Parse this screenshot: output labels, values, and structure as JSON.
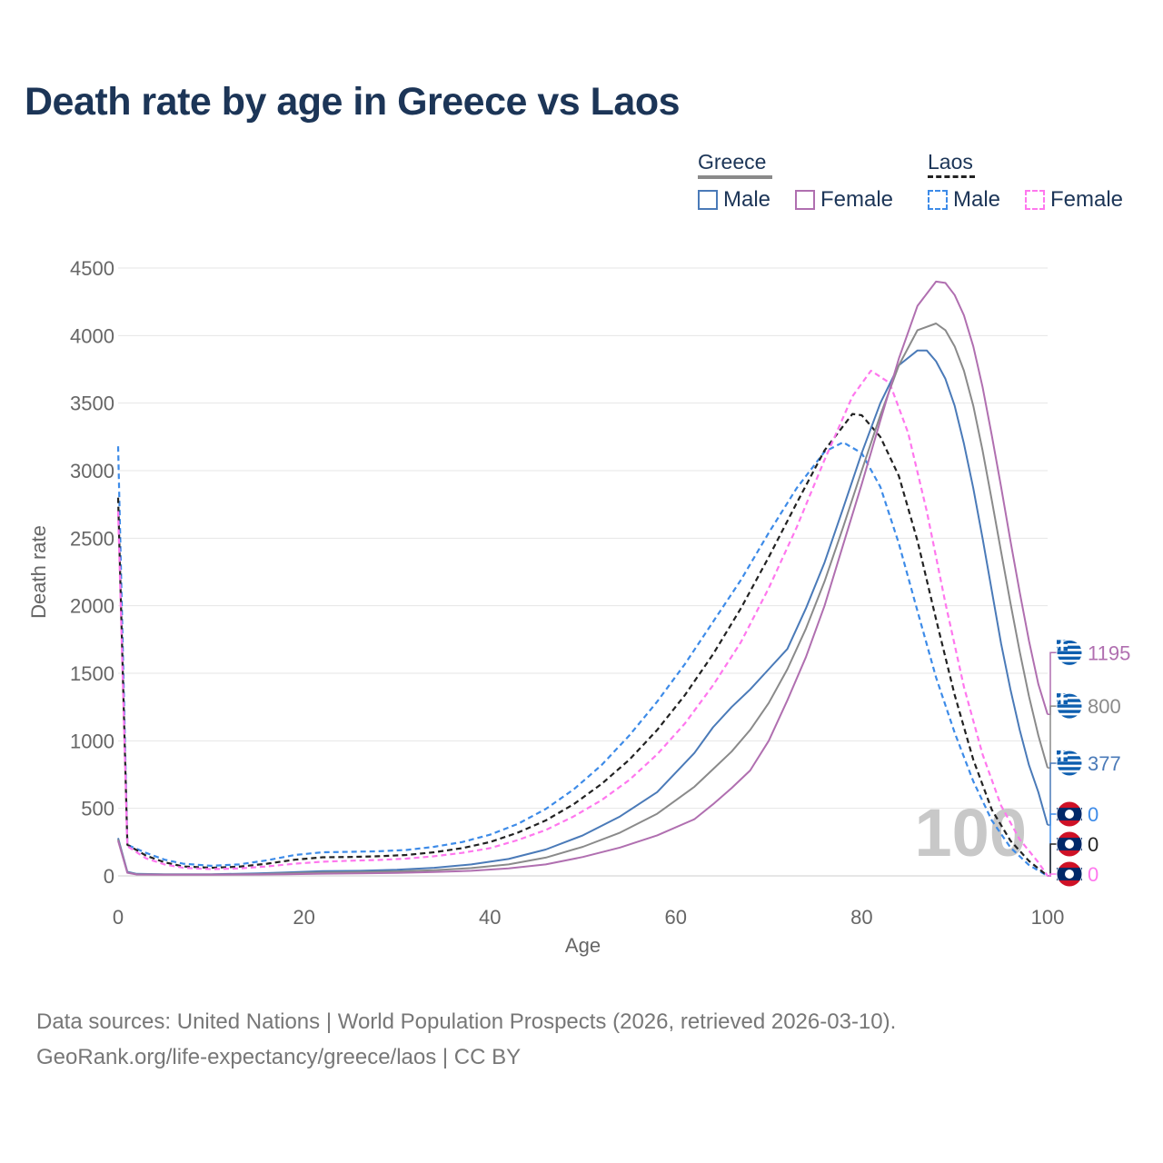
{
  "title": "Death rate by age in Greece vs Laos",
  "legend": {
    "groups": [
      {
        "label": "Greece",
        "line_color": "#8a8a8a",
        "dashed": false
      },
      {
        "label": "Laos",
        "line_color": "#222222",
        "dashed": true
      }
    ],
    "items": [
      {
        "label": "Male",
        "color": "#4a7ab8",
        "dashed": false
      },
      {
        "label": "Female",
        "color": "#b06fb0",
        "dashed": false
      },
      {
        "label": "Male",
        "color": "#3d8be8",
        "dashed": true
      },
      {
        "label": "Female",
        "color": "#ff77ee",
        "dashed": true
      }
    ]
  },
  "watermark": "100",
  "footer": {
    "line1": "Data sources: United Nations | World Population Prospects (2026, retrieved 2026-03-10).",
    "line2": "GeoRank.org/life-expectancy/greece/laos | CC BY"
  },
  "chart_data": {
    "type": "line",
    "title": "Death rate by age in Greece vs Laos",
    "xlabel": "Age",
    "ylabel": "Death rate",
    "xlim": [
      0,
      100
    ],
    "ylim": [
      0,
      4500
    ],
    "xticks": [
      0,
      20,
      40,
      60,
      80,
      100
    ],
    "yticks": [
      0,
      500,
      1000,
      1500,
      2000,
      2500,
      3000,
      3500,
      4000,
      4500
    ],
    "grid": true,
    "series": [
      {
        "name": "Laos Male",
        "country": "Laos",
        "sex": "Male",
        "color": "#3d8be8",
        "dashed": true,
        "end_label": "0",
        "points": [
          [
            0,
            3180
          ],
          [
            1,
            230
          ],
          [
            3,
            170
          ],
          [
            5,
            120
          ],
          [
            7,
            90
          ],
          [
            10,
            75
          ],
          [
            13,
            85
          ],
          [
            16,
            115
          ],
          [
            19,
            155
          ],
          [
            22,
            175
          ],
          [
            25,
            178
          ],
          [
            28,
            182
          ],
          [
            31,
            192
          ],
          [
            34,
            215
          ],
          [
            37,
            250
          ],
          [
            40,
            305
          ],
          [
            43,
            385
          ],
          [
            46,
            495
          ],
          [
            49,
            640
          ],
          [
            52,
            820
          ],
          [
            55,
            1040
          ],
          [
            58,
            1290
          ],
          [
            61,
            1570
          ],
          [
            64,
            1880
          ],
          [
            67,
            2190
          ],
          [
            70,
            2540
          ],
          [
            73,
            2870
          ],
          [
            76,
            3140
          ],
          [
            78,
            3210
          ],
          [
            80,
            3130
          ],
          [
            82,
            2880
          ],
          [
            84,
            2460
          ],
          [
            86,
            1960
          ],
          [
            88,
            1470
          ],
          [
            90,
            1060
          ],
          [
            92,
            700
          ],
          [
            94,
            410
          ],
          [
            96,
            210
          ],
          [
            98,
            80
          ],
          [
            100,
            0
          ]
        ]
      },
      {
        "name": "Laos Both",
        "country": "Laos",
        "sex": "Both",
        "color": "#222222",
        "dashed": true,
        "end_label": "0",
        "points": [
          [
            0,
            2800
          ],
          [
            1,
            230
          ],
          [
            3,
            150
          ],
          [
            5,
            100
          ],
          [
            7,
            70
          ],
          [
            10,
            60
          ],
          [
            13,
            68
          ],
          [
            16,
            90
          ],
          [
            19,
            120
          ],
          [
            22,
            138
          ],
          [
            25,
            140
          ],
          [
            28,
            145
          ],
          [
            31,
            155
          ],
          [
            34,
            175
          ],
          [
            37,
            205
          ],
          [
            40,
            250
          ],
          [
            43,
            320
          ],
          [
            46,
            410
          ],
          [
            49,
            530
          ],
          [
            52,
            680
          ],
          [
            55,
            860
          ],
          [
            58,
            1080
          ],
          [
            61,
            1340
          ],
          [
            64,
            1640
          ],
          [
            67,
            1980
          ],
          [
            70,
            2360
          ],
          [
            73,
            2760
          ],
          [
            76,
            3150
          ],
          [
            79,
            3420
          ],
          [
            80,
            3410
          ],
          [
            82,
            3250
          ],
          [
            84,
            2960
          ],
          [
            86,
            2480
          ],
          [
            88,
            1900
          ],
          [
            90,
            1340
          ],
          [
            92,
            860
          ],
          [
            94,
            490
          ],
          [
            96,
            260
          ],
          [
            98,
            110
          ],
          [
            100,
            0
          ]
        ]
      },
      {
        "name": "Laos Female",
        "country": "Laos",
        "sex": "Female",
        "color": "#ff77ee",
        "dashed": true,
        "end_label": "0",
        "points": [
          [
            0,
            2700
          ],
          [
            1,
            220
          ],
          [
            3,
            130
          ],
          [
            5,
            85
          ],
          [
            7,
            60
          ],
          [
            10,
            50
          ],
          [
            13,
            55
          ],
          [
            16,
            70
          ],
          [
            19,
            90
          ],
          [
            22,
            105
          ],
          [
            25,
            112
          ],
          [
            28,
            118
          ],
          [
            31,
            128
          ],
          [
            34,
            145
          ],
          [
            37,
            170
          ],
          [
            40,
            205
          ],
          [
            43,
            265
          ],
          [
            46,
            340
          ],
          [
            49,
            440
          ],
          [
            52,
            560
          ],
          [
            55,
            710
          ],
          [
            58,
            900
          ],
          [
            61,
            1130
          ],
          [
            64,
            1410
          ],
          [
            67,
            1730
          ],
          [
            70,
            2130
          ],
          [
            73,
            2580
          ],
          [
            76,
            3080
          ],
          [
            79,
            3550
          ],
          [
            81,
            3740
          ],
          [
            83,
            3650
          ],
          [
            85,
            3280
          ],
          [
            87,
            2700
          ],
          [
            89,
            2020
          ],
          [
            91,
            1400
          ],
          [
            93,
            900
          ],
          [
            95,
            520
          ],
          [
            97,
            270
          ],
          [
            99,
            100
          ],
          [
            100,
            0
          ]
        ]
      },
      {
        "name": "Greece Male",
        "country": "Greece",
        "sex": "Male",
        "color": "#4a7ab8",
        "dashed": false,
        "end_label": "377",
        "points": [
          [
            0,
            280
          ],
          [
            1,
            30
          ],
          [
            2,
            15
          ],
          [
            5,
            12
          ],
          [
            10,
            12
          ],
          [
            15,
            18
          ],
          [
            18,
            25
          ],
          [
            22,
            35
          ],
          [
            26,
            38
          ],
          [
            30,
            45
          ],
          [
            34,
            60
          ],
          [
            38,
            85
          ],
          [
            42,
            125
          ],
          [
            46,
            195
          ],
          [
            50,
            300
          ],
          [
            54,
            440
          ],
          [
            58,
            620
          ],
          [
            62,
            910
          ],
          [
            64,
            1100
          ],
          [
            66,
            1250
          ],
          [
            68,
            1380
          ],
          [
            70,
            1530
          ],
          [
            72,
            1680
          ],
          [
            74,
            1980
          ],
          [
            76,
            2320
          ],
          [
            78,
            2720
          ],
          [
            80,
            3130
          ],
          [
            82,
            3500
          ],
          [
            84,
            3780
          ],
          [
            86,
            3890
          ],
          [
            87,
            3890
          ],
          [
            88,
            3810
          ],
          [
            89,
            3680
          ],
          [
            90,
            3480
          ],
          [
            91,
            3200
          ],
          [
            92,
            2870
          ],
          [
            93,
            2500
          ],
          [
            94,
            2110
          ],
          [
            95,
            1720
          ],
          [
            96,
            1380
          ],
          [
            97,
            1080
          ],
          [
            98,
            820
          ],
          [
            99,
            620
          ],
          [
            100,
            377
          ]
        ]
      },
      {
        "name": "Greece Both",
        "country": "Greece",
        "sex": "Both",
        "color": "#8a8a8a",
        "dashed": false,
        "end_label": "800",
        "points": [
          [
            0,
            270
          ],
          [
            1,
            25
          ],
          [
            2,
            12
          ],
          [
            5,
            10
          ],
          [
            10,
            10
          ],
          [
            15,
            13
          ],
          [
            18,
            18
          ],
          [
            22,
            25
          ],
          [
            26,
            28
          ],
          [
            30,
            33
          ],
          [
            34,
            42
          ],
          [
            38,
            58
          ],
          [
            42,
            85
          ],
          [
            46,
            135
          ],
          [
            50,
            215
          ],
          [
            54,
            320
          ],
          [
            58,
            460
          ],
          [
            62,
            660
          ],
          [
            64,
            790
          ],
          [
            66,
            920
          ],
          [
            68,
            1080
          ],
          [
            70,
            1280
          ],
          [
            72,
            1530
          ],
          [
            74,
            1830
          ],
          [
            76,
            2180
          ],
          [
            78,
            2580
          ],
          [
            80,
            3000
          ],
          [
            82,
            3410
          ],
          [
            84,
            3780
          ],
          [
            86,
            4040
          ],
          [
            88,
            4090
          ],
          [
            89,
            4040
          ],
          [
            90,
            3920
          ],
          [
            91,
            3740
          ],
          [
            92,
            3480
          ],
          [
            93,
            3150
          ],
          [
            94,
            2780
          ],
          [
            95,
            2400
          ],
          [
            96,
            2020
          ],
          [
            97,
            1660
          ],
          [
            98,
            1330
          ],
          [
            99,
            1040
          ],
          [
            100,
            800
          ]
        ]
      },
      {
        "name": "Greece Female",
        "country": "Greece",
        "sex": "Female",
        "color": "#b06fb0",
        "dashed": false,
        "end_label": "1195",
        "points": [
          [
            0,
            260
          ],
          [
            1,
            22
          ],
          [
            2,
            10
          ],
          [
            5,
            8
          ],
          [
            10,
            8
          ],
          [
            15,
            10
          ],
          [
            18,
            12
          ],
          [
            22,
            16
          ],
          [
            26,
            18
          ],
          [
            30,
            22
          ],
          [
            34,
            28
          ],
          [
            38,
            38
          ],
          [
            42,
            55
          ],
          [
            46,
            85
          ],
          [
            50,
            140
          ],
          [
            54,
            210
          ],
          [
            58,
            300
          ],
          [
            62,
            420
          ],
          [
            64,
            530
          ],
          [
            66,
            650
          ],
          [
            68,
            780
          ],
          [
            70,
            1000
          ],
          [
            72,
            1300
          ],
          [
            74,
            1620
          ],
          [
            76,
            2000
          ],
          [
            78,
            2450
          ],
          [
            80,
            2900
          ],
          [
            82,
            3370
          ],
          [
            84,
            3830
          ],
          [
            86,
            4220
          ],
          [
            88,
            4400
          ],
          [
            89,
            4390
          ],
          [
            90,
            4300
          ],
          [
            91,
            4150
          ],
          [
            92,
            3920
          ],
          [
            93,
            3620
          ],
          [
            94,
            3260
          ],
          [
            95,
            2880
          ],
          [
            96,
            2480
          ],
          [
            97,
            2100
          ],
          [
            98,
            1740
          ],
          [
            99,
            1420
          ],
          [
            100,
            1195
          ]
        ]
      }
    ]
  }
}
